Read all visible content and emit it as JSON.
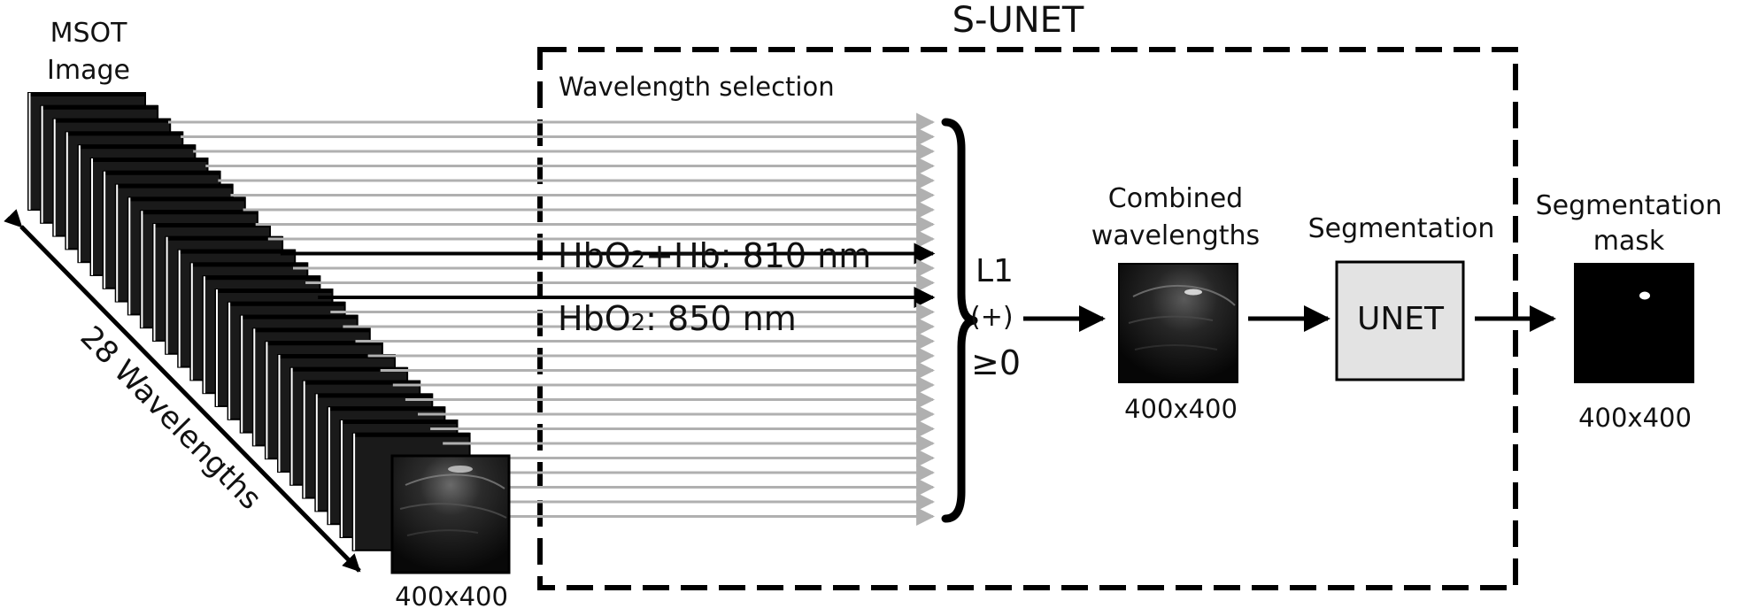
{
  "title": "S-UNET",
  "input": {
    "label_line1": "MSOT",
    "label_line2": "Image",
    "stack_count": 28,
    "axis_label": "28 Wavelengths",
    "size_label": "400x400"
  },
  "selection": {
    "label": "Wavelength selection",
    "highlight_1": {
      "prefix": "HbO",
      "sub": "2",
      "suffix": "+Hb: 810 nm"
    },
    "highlight_2": {
      "prefix": "HbO",
      "sub": "2",
      "suffix": ": 850 nm"
    },
    "constraint_line1": "L1",
    "constraint_line2": "(+)",
    "constraint_line3": "≥0"
  },
  "combined": {
    "label_line1": "Combined",
    "label_line2": "wavelengths",
    "size_label": "400x400"
  },
  "segmentation": {
    "label": "Segmentation",
    "block_label": "UNET"
  },
  "output": {
    "label_line1": "Segmentation",
    "label_line2": "mask",
    "size_label": "400x400"
  },
  "colors": {
    "stroke": "#000000",
    "arrow_gray": "#b0b0b0",
    "unet_fill": "#e3e3e3"
  }
}
